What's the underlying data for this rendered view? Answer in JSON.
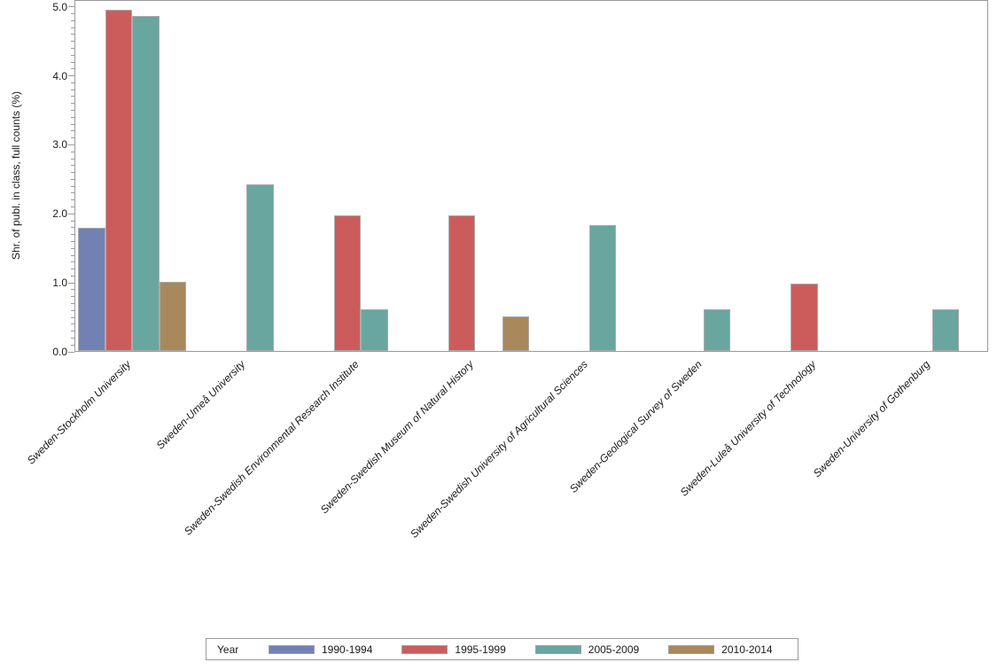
{
  "colors": {
    "frame": "#999a9e",
    "bar_border": "#ababab",
    "series_blue": "#7281b4",
    "series_red": "#cc5c5c",
    "series_teal": "#69a6a0",
    "series_tan": "#a9885c"
  },
  "chart_data": {
    "type": "bar",
    "title": "",
    "xlabel": "",
    "ylabel": "Shr. of publ. in class, full counts (%)",
    "ylim": [
      0,
      5.1
    ],
    "yticks": [
      0,
      1,
      2,
      3,
      4,
      5
    ],
    "ytick_labels": [
      "0.0",
      "1.0",
      "2.0",
      "3.0",
      "4.0",
      "5.0"
    ],
    "minor_tick_step": 0.1,
    "grid": "off",
    "legend_title": "Year",
    "legend_position": "bottom-center",
    "categories": [
      "Sweden-Stockholm University",
      "Sweden-Umeå University",
      "Sweden-Swedish Environmental Research Institute",
      "Sweden-Swedish Museum of Natural History",
      "Sweden-Swedish University of Agricultural Sciences",
      "Sweden-Geological Survey of Sweden",
      "Sweden-Luleå University of Technology",
      "Sweden-University of Gothenburg"
    ],
    "series": [
      {
        "name": "1990-1994",
        "color": "#7281b4",
        "values": [
          1.78,
          null,
          null,
          null,
          null,
          null,
          null,
          null
        ]
      },
      {
        "name": "1995-1999",
        "color": "#cc5c5c",
        "values": [
          4.94,
          null,
          1.97,
          1.97,
          null,
          null,
          0.98,
          null
        ]
      },
      {
        "name": "2005-2009",
        "color": "#69a6a0",
        "values": [
          4.85,
          2.42,
          0.6,
          null,
          1.82,
          0.6,
          null,
          0.6
        ]
      },
      {
        "name": "2010-2014",
        "color": "#a9885c",
        "values": [
          1.0,
          null,
          null,
          0.5,
          null,
          null,
          null,
          null
        ]
      }
    ]
  }
}
